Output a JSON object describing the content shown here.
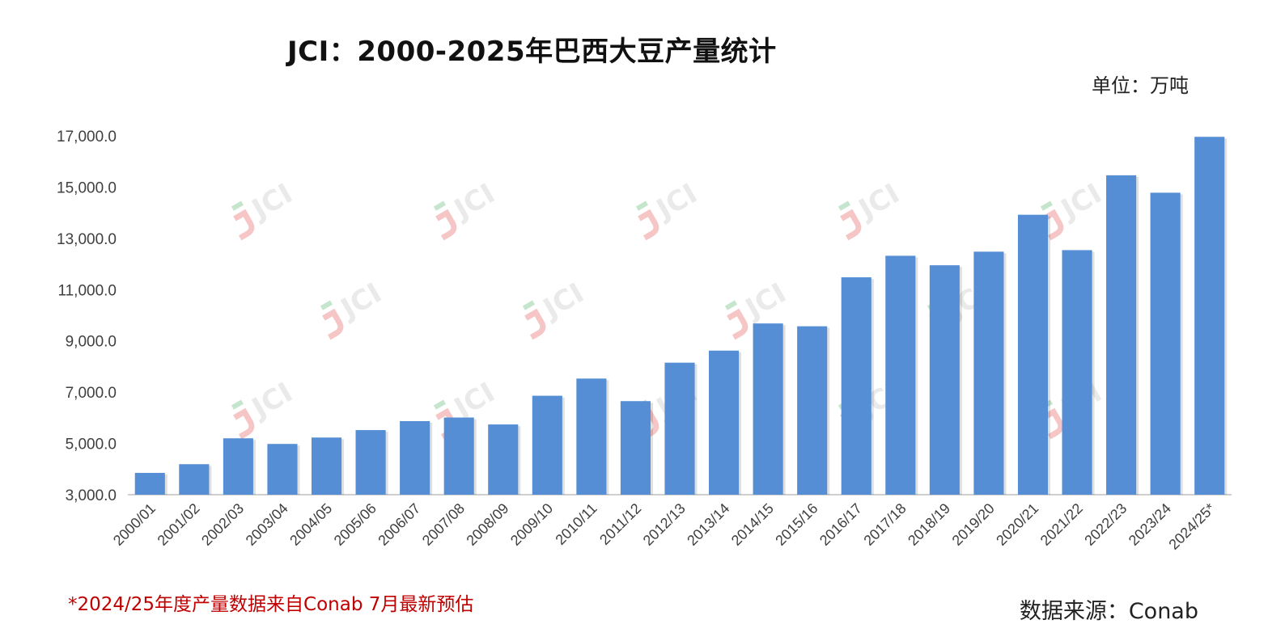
{
  "header": {
    "title": "JCI：2000-2025年巴西大豆产量统计",
    "unit": "单位：万吨"
  },
  "footer": {
    "note": "*2024/25年度产量数据来自Conab 7月最新预估",
    "source": "数据来源：Conab"
  },
  "watermark": {
    "text": "JCI"
  },
  "colors": {
    "bar": "#558ed5",
    "axis": "#bfbfbf",
    "note": "#c00000",
    "watermark_accent_red": "#f4b6b6",
    "watermark_accent_green": "#b7dfc0"
  },
  "chart_data": {
    "type": "bar",
    "categories": [
      "2000/01",
      "2001/02",
      "2002/03",
      "2003/04",
      "2004/05",
      "2005/06",
      "2006/07",
      "2007/08",
      "2008/09",
      "2009/10",
      "2010/11",
      "2011/12",
      "2012/13",
      "2013/14",
      "2014/15",
      "2015/16",
      "2016/17",
      "2017/18",
      "2018/19",
      "2019/20",
      "2020/21",
      "2021/22",
      "2022/23",
      "2023/24",
      "2024/25*"
    ],
    "values": [
      3850,
      4190,
      5200,
      4980,
      5230,
      5520,
      5870,
      6010,
      5740,
      6860,
      7530,
      6650,
      8150,
      8620,
      9680,
      9570,
      11480,
      12320,
      11950,
      12480,
      13920,
      12540,
      15460,
      14780,
      16960
    ],
    "ylim": [
      3000,
      17000
    ],
    "yticks": [
      "3,000.0",
      "5,000.0",
      "7,000.0",
      "9,000.0",
      "11,000.0",
      "13,000.0",
      "15,000.0",
      "17,000.0"
    ],
    "ytick_values": [
      3000,
      5000,
      7000,
      9000,
      11000,
      13000,
      15000,
      17000
    ],
    "grid": false,
    "legend": "none"
  }
}
